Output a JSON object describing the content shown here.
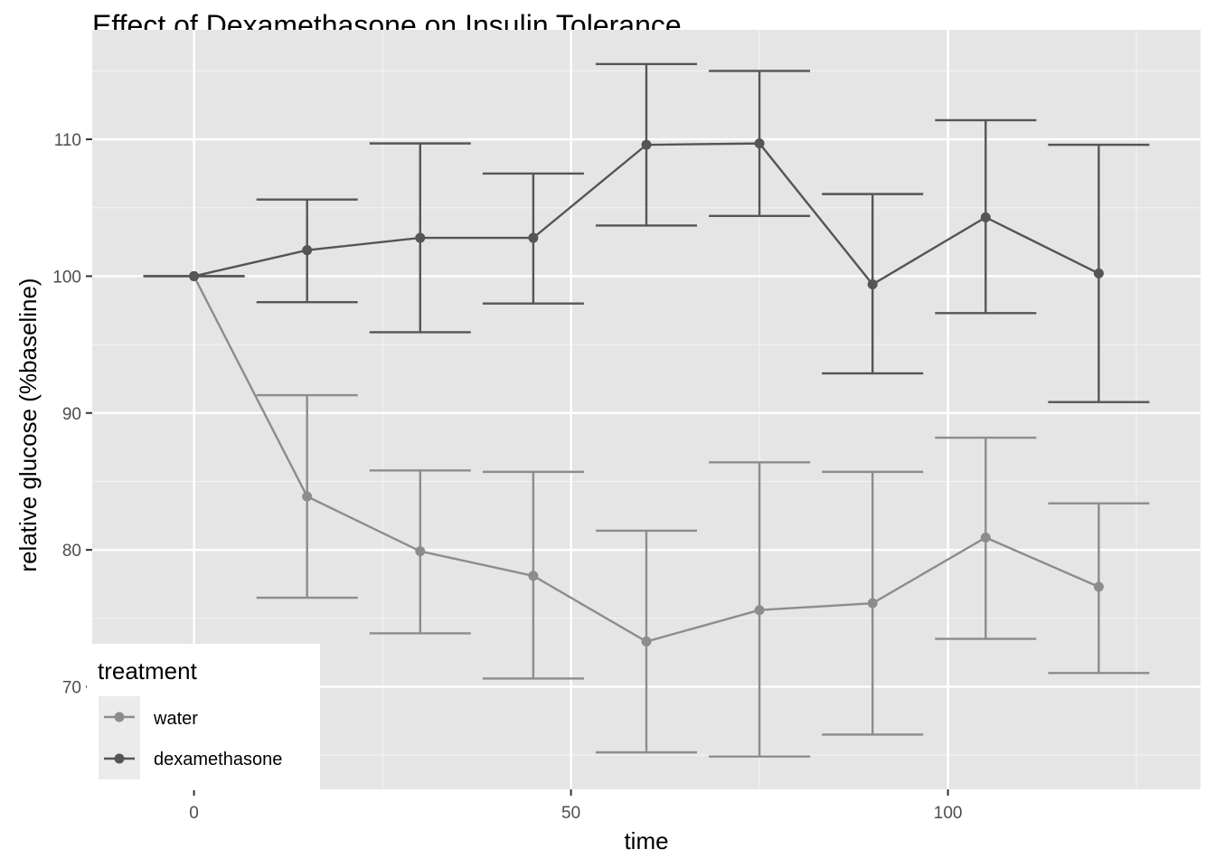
{
  "chart_data": {
    "type": "line",
    "title": "Effect of Dexamethasone on Insulin Tolerance",
    "xlabel": "time",
    "ylabel": "relative glucose (%baseline)",
    "xlim": [
      -13.5,
      133.5
    ],
    "ylim": [
      62.5,
      118
    ],
    "x_ticks": [
      0,
      50,
      100
    ],
    "y_ticks": [
      70,
      80,
      90,
      100,
      110
    ],
    "x": [
      0,
      15,
      30,
      45,
      60,
      75,
      90,
      105,
      120
    ],
    "grid": true,
    "legend": {
      "title": "treatment",
      "position": "bottom-left"
    },
    "series": [
      {
        "name": "water",
        "color": "#8c8c8c",
        "values": [
          100,
          83.9,
          79.9,
          78.1,
          73.3,
          75.6,
          76.1,
          80.9,
          77.3
        ],
        "error_low": [
          100,
          76.5,
          73.9,
          70.6,
          65.2,
          64.9,
          66.5,
          73.5,
          71.0
        ],
        "error_high": [
          100,
          91.3,
          85.8,
          85.7,
          81.4,
          86.4,
          85.7,
          88.2,
          83.4
        ]
      },
      {
        "name": "dexamethasone",
        "color": "#555555",
        "values": [
          100,
          101.9,
          102.8,
          102.8,
          109.6,
          109.7,
          99.4,
          104.3,
          100.2
        ],
        "error_low": [
          100,
          98.1,
          95.9,
          98.0,
          103.7,
          104.4,
          92.9,
          97.3,
          90.8
        ],
        "error_high": [
          100,
          105.6,
          109.7,
          107.5,
          115.5,
          115.0,
          106.0,
          111.4,
          109.6
        ]
      }
    ]
  }
}
